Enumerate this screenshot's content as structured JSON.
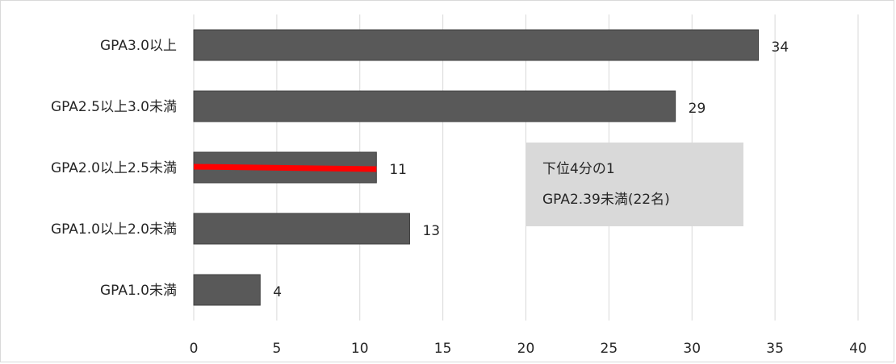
{
  "chart_data": {
    "type": "bar",
    "orientation": "horizontal",
    "categories": [
      "GPA3.0以上",
      "GPA2.5以上3.0未満",
      "GPA2.0以上2.5未満",
      "GPA1.0以上2.0未満",
      "GPA1.0未満"
    ],
    "values": [
      34,
      29,
      11,
      13,
      4
    ],
    "data_labels": [
      "34",
      "29",
      "11",
      "13",
      "4"
    ],
    "xlim": [
      0,
      40
    ],
    "x_ticks": [
      "0",
      "5",
      "10",
      "15",
      "20",
      "25",
      "30",
      "35",
      "40"
    ],
    "x_tick_values": [
      0,
      5,
      10,
      15,
      20,
      25,
      30,
      35,
      40
    ],
    "grid": "vertical",
    "legend": "none",
    "threshold_marker": {
      "category": "GPA2.0以上2.5未満",
      "from": 0,
      "to": 11
    },
    "annotation": {
      "line1": "下位4分の1",
      "line2": "GPA2.39未満(22名)"
    },
    "colors": {
      "bar": "#595959",
      "bar_edge": "#3f3f3f",
      "marker": "#ff0000",
      "grid": "#d9d9d9",
      "text": "#262626",
      "annotation_bg": "#d9d9d9"
    }
  }
}
